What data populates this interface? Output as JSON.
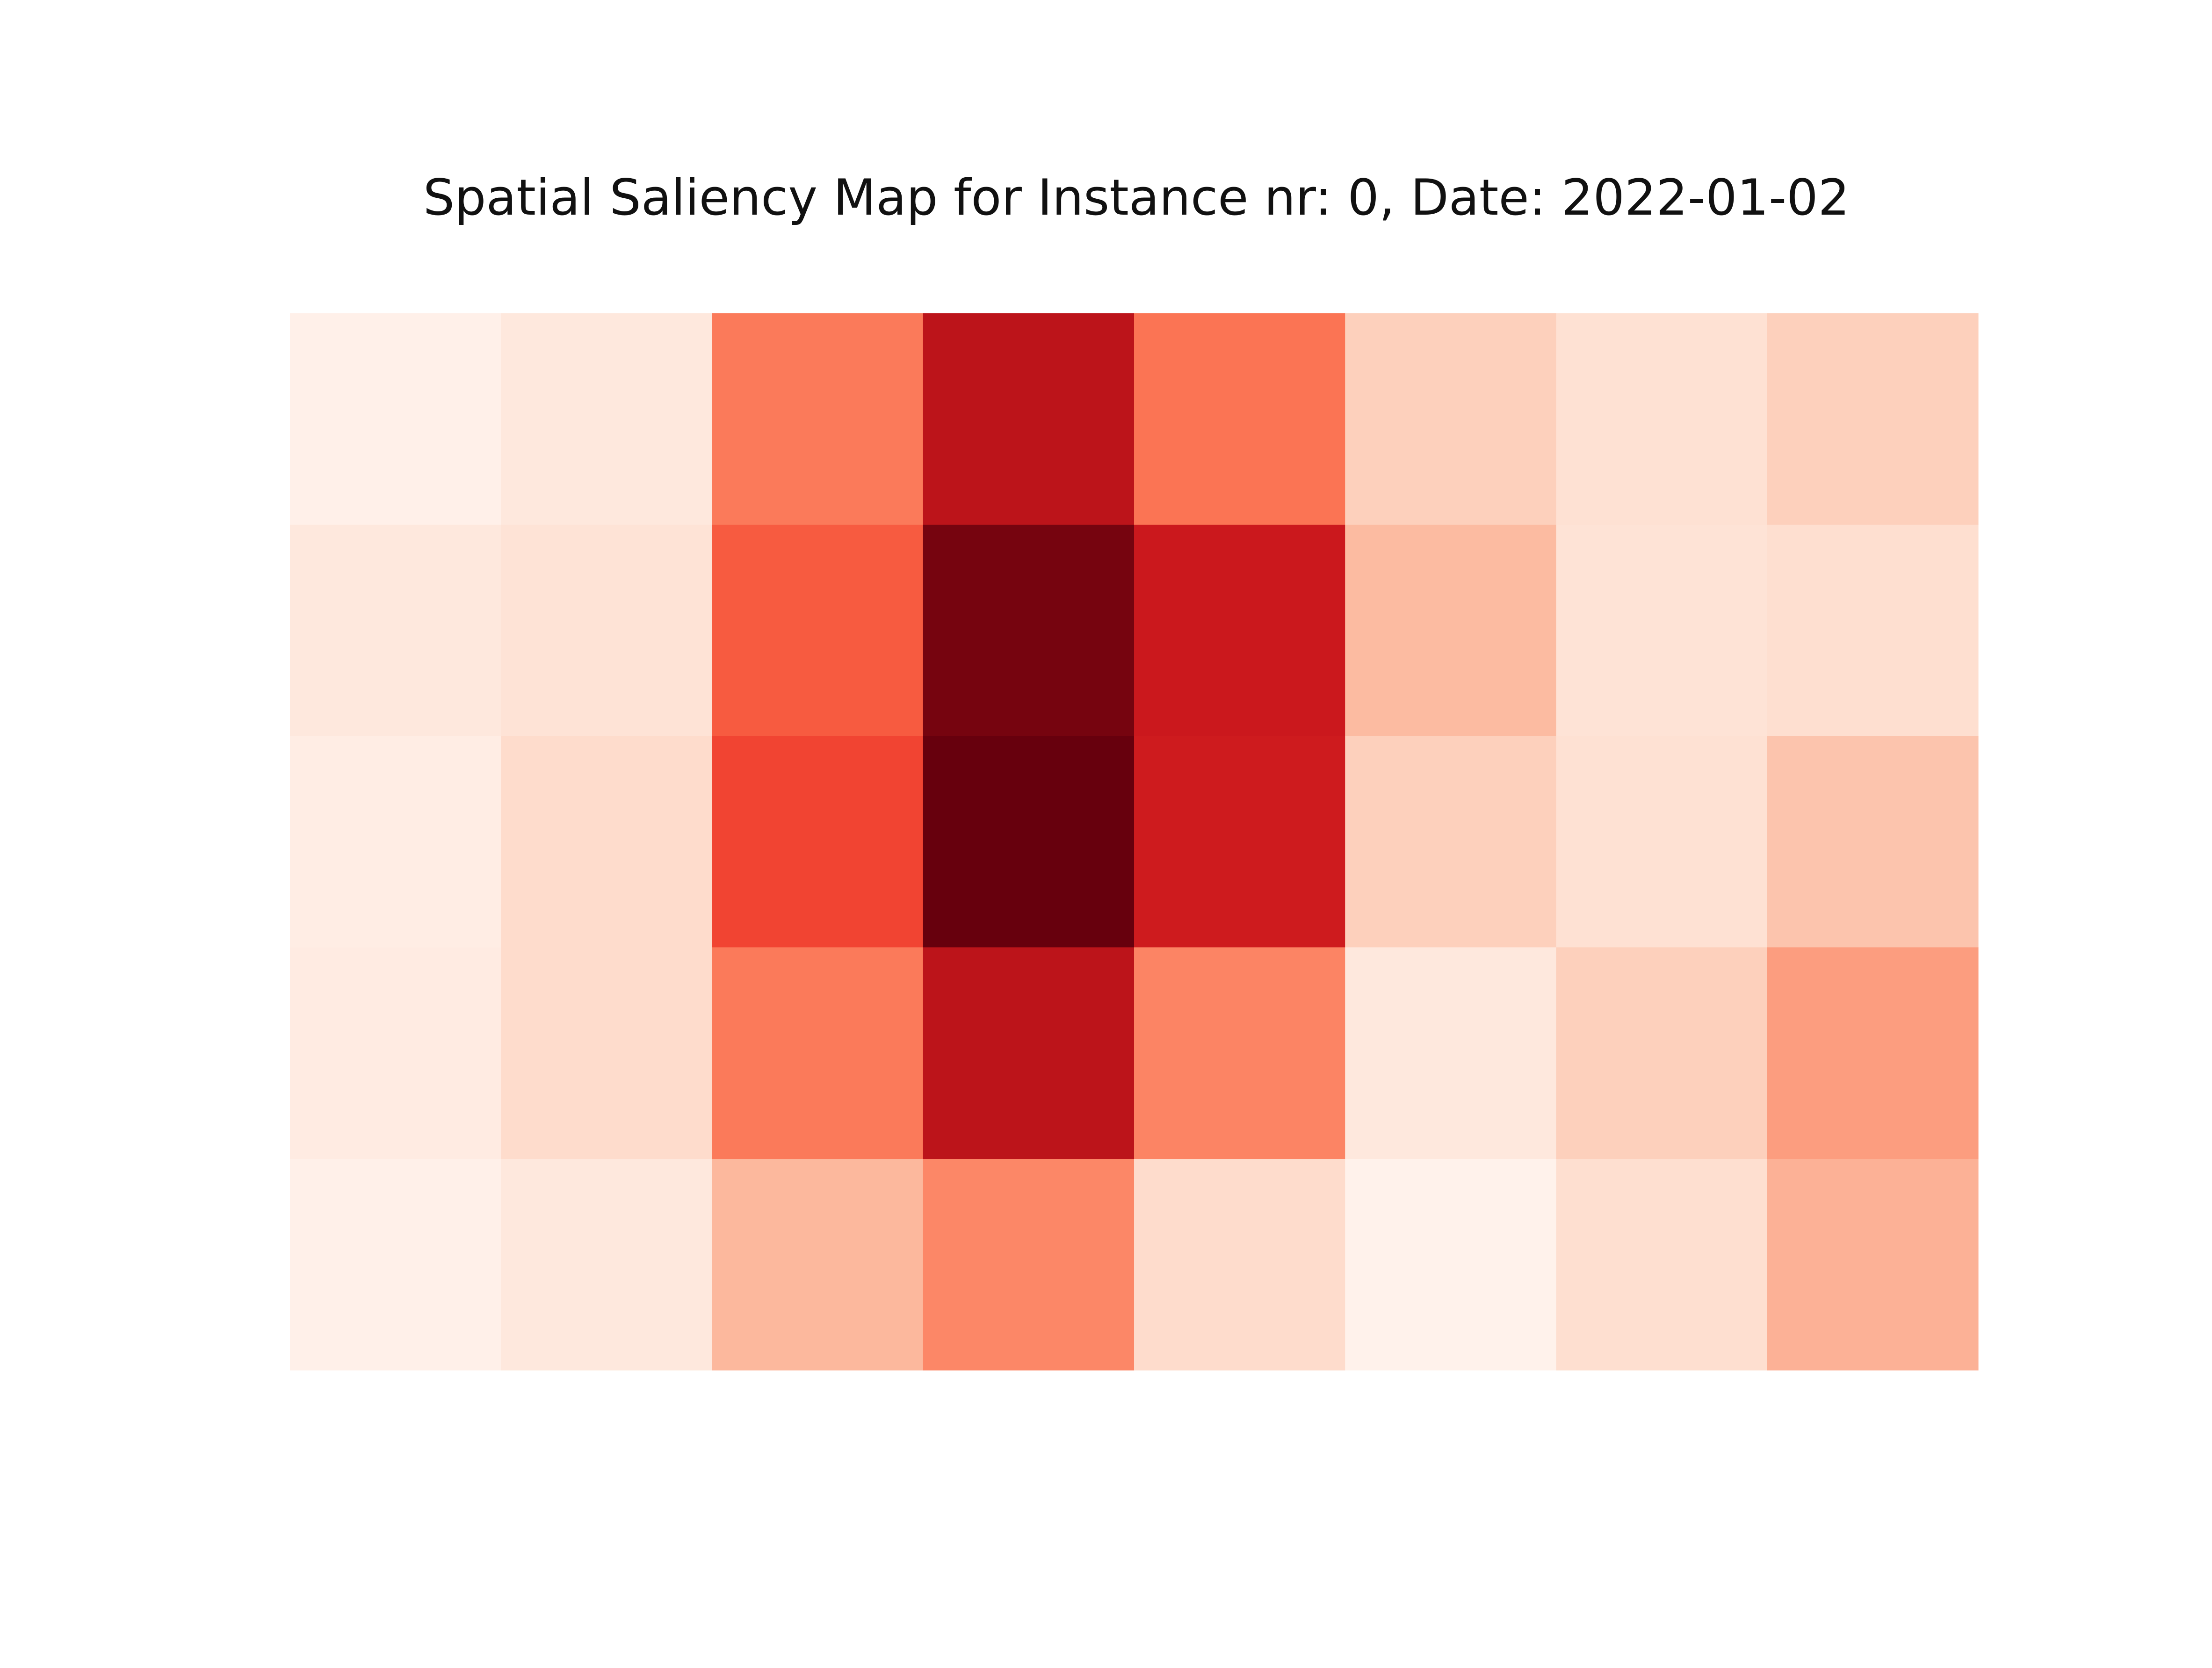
{
  "chart_data": {
    "type": "heatmap",
    "title": "Spatial Saliency Map for Instance nr: 0, Date: 2022-01-02",
    "colormap": "Reds",
    "vmin": 0,
    "vmax": 1,
    "axes_visible": false,
    "grid": false,
    "legend": "none",
    "rows": 5,
    "cols": 8,
    "values": [
      [
        0.03,
        0.08,
        0.45,
        0.8,
        0.47,
        0.18,
        0.12,
        0.18
      ],
      [
        0.08,
        0.11,
        0.54,
        0.97,
        0.75,
        0.25,
        0.11,
        0.13
      ],
      [
        0.05,
        0.14,
        0.6,
        1.0,
        0.74,
        0.18,
        0.12,
        0.22
      ],
      [
        0.06,
        0.14,
        0.45,
        0.8,
        0.42,
        0.08,
        0.18,
        0.34
      ],
      [
        0.03,
        0.08,
        0.26,
        0.41,
        0.14,
        0.02,
        0.13,
        0.28
      ]
    ]
  }
}
